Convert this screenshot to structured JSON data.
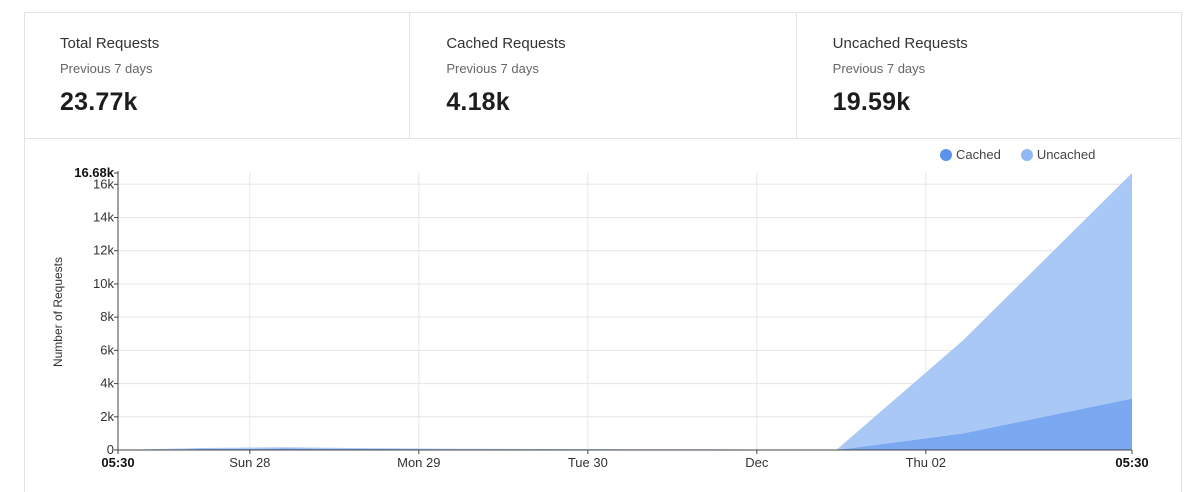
{
  "stats": [
    {
      "title": "Total Requests",
      "subtitle": "Previous 7 days",
      "value": "23.77k"
    },
    {
      "title": "Cached Requests",
      "subtitle": "Previous 7 days",
      "value": "4.18k"
    },
    {
      "title": "Uncached Requests",
      "subtitle": "Previous 7 days",
      "value": "19.59k"
    }
  ],
  "legend": [
    {
      "label": "Cached",
      "color": "#5b93ec"
    },
    {
      "label": "Uncached",
      "color": "#90b8f2"
    }
  ],
  "chart_data": {
    "type": "area",
    "stacked": true,
    "ylabel": "Number of Requests",
    "ylim": [
      0,
      16680
    ],
    "ymax_label": "16.68k",
    "y_ticks": [
      0,
      2000,
      4000,
      6000,
      8000,
      10000,
      12000,
      14000,
      16000
    ],
    "y_tick_labels": [
      "0",
      "2k",
      "4k",
      "6k",
      "8k",
      "10k",
      "12k",
      "14k",
      "16k"
    ],
    "x_tick_labels": [
      {
        "label": "05:30",
        "pos": 0,
        "bold": true
      },
      {
        "label": "Sun 28",
        "pos": 0.78,
        "bold": false
      },
      {
        "label": "Mon 29",
        "pos": 1.78,
        "bold": false
      },
      {
        "label": "Tue 30",
        "pos": 2.78,
        "bold": false
      },
      {
        "label": "Dec",
        "pos": 3.78,
        "bold": false
      },
      {
        "label": "Thu 02",
        "pos": 4.78,
        "bold": false
      },
      {
        "label": "05:30",
        "pos": 6,
        "bold": true
      }
    ],
    "xlim": [
      0,
      6
    ],
    "grid": true,
    "legend_position": "top-right",
    "series": [
      {
        "name": "Cached",
        "color": "#7aa9f2",
        "x": [
          0,
          0.5,
          1,
          1.5,
          2,
          2.5,
          3,
          3.5,
          4,
          4.25,
          5,
          6
        ],
        "values": [
          0,
          60,
          90,
          60,
          40,
          30,
          20,
          20,
          10,
          0,
          1000,
          3100
        ]
      },
      {
        "name": "Uncached",
        "color": "#a9c8f6",
        "x": [
          0,
          0.5,
          1,
          1.5,
          2,
          2.5,
          3,
          3.5,
          4,
          4.25,
          5,
          6
        ],
        "values": [
          0,
          60,
          80,
          50,
          40,
          30,
          20,
          20,
          10,
          0,
          5600,
          13580
        ]
      }
    ]
  }
}
